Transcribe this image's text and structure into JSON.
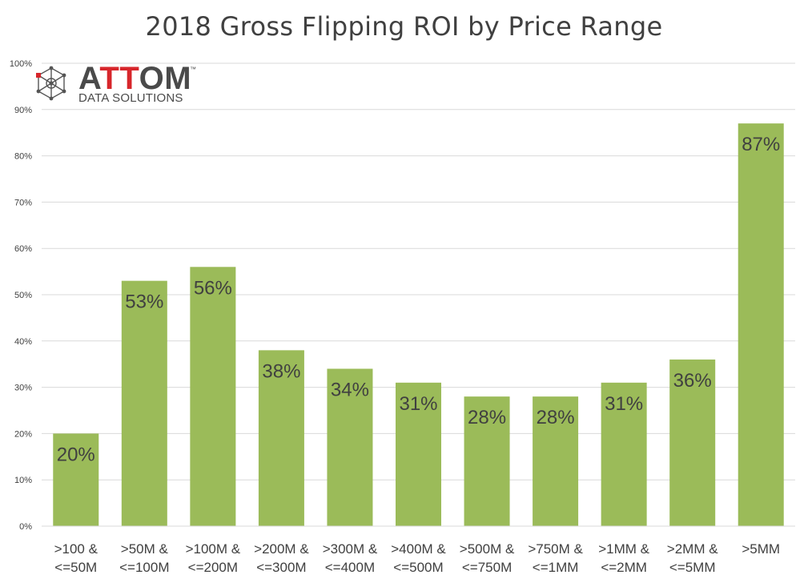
{
  "title": "2018 Gross Flipping ROI by Price Range",
  "logo": {
    "word_pre": "A",
    "word_red": "TT",
    "word_post": "OM",
    "tm": "™",
    "subtitle": "DATA SOLUTIONS"
  },
  "colors": {
    "bar": "#9bbb59",
    "grid": "#d9d9d9",
    "text": "#404040",
    "brand_red": "#d7262b"
  },
  "chart_data": {
    "type": "bar",
    "title": "2018 Gross Flipping ROI by Price Range",
    "xlabel": "",
    "ylabel": "",
    "ylim": [
      0,
      100
    ],
    "grid": true,
    "legend": "none",
    "y_ticks": [
      "0%",
      "10%",
      "20%",
      "30%",
      "40%",
      "50%",
      "60%",
      "70%",
      "80%",
      "90%",
      "100%"
    ],
    "categories": [
      [
        ">100 &",
        "<=50M"
      ],
      [
        ">50M &",
        "<=100M"
      ],
      [
        ">100M &",
        "<=200M"
      ],
      [
        ">200M &",
        "<=300M"
      ],
      [
        ">300M &",
        "<=400M"
      ],
      [
        ">400M &",
        "<=500M"
      ],
      [
        ">500M &",
        "<=750M"
      ],
      [
        ">750M &",
        "<=1MM"
      ],
      [
        ">1MM &",
        "<=2MM"
      ],
      [
        ">2MM &",
        "<=5MM"
      ],
      [
        ">5MM"
      ]
    ],
    "values": [
      20,
      53,
      56,
      38,
      34,
      31,
      28,
      28,
      31,
      36,
      87
    ],
    "data_labels": [
      "20%",
      "53%",
      "56%",
      "38%",
      "34%",
      "31%",
      "28%",
      "28%",
      "31%",
      "36%",
      "87%"
    ]
  }
}
